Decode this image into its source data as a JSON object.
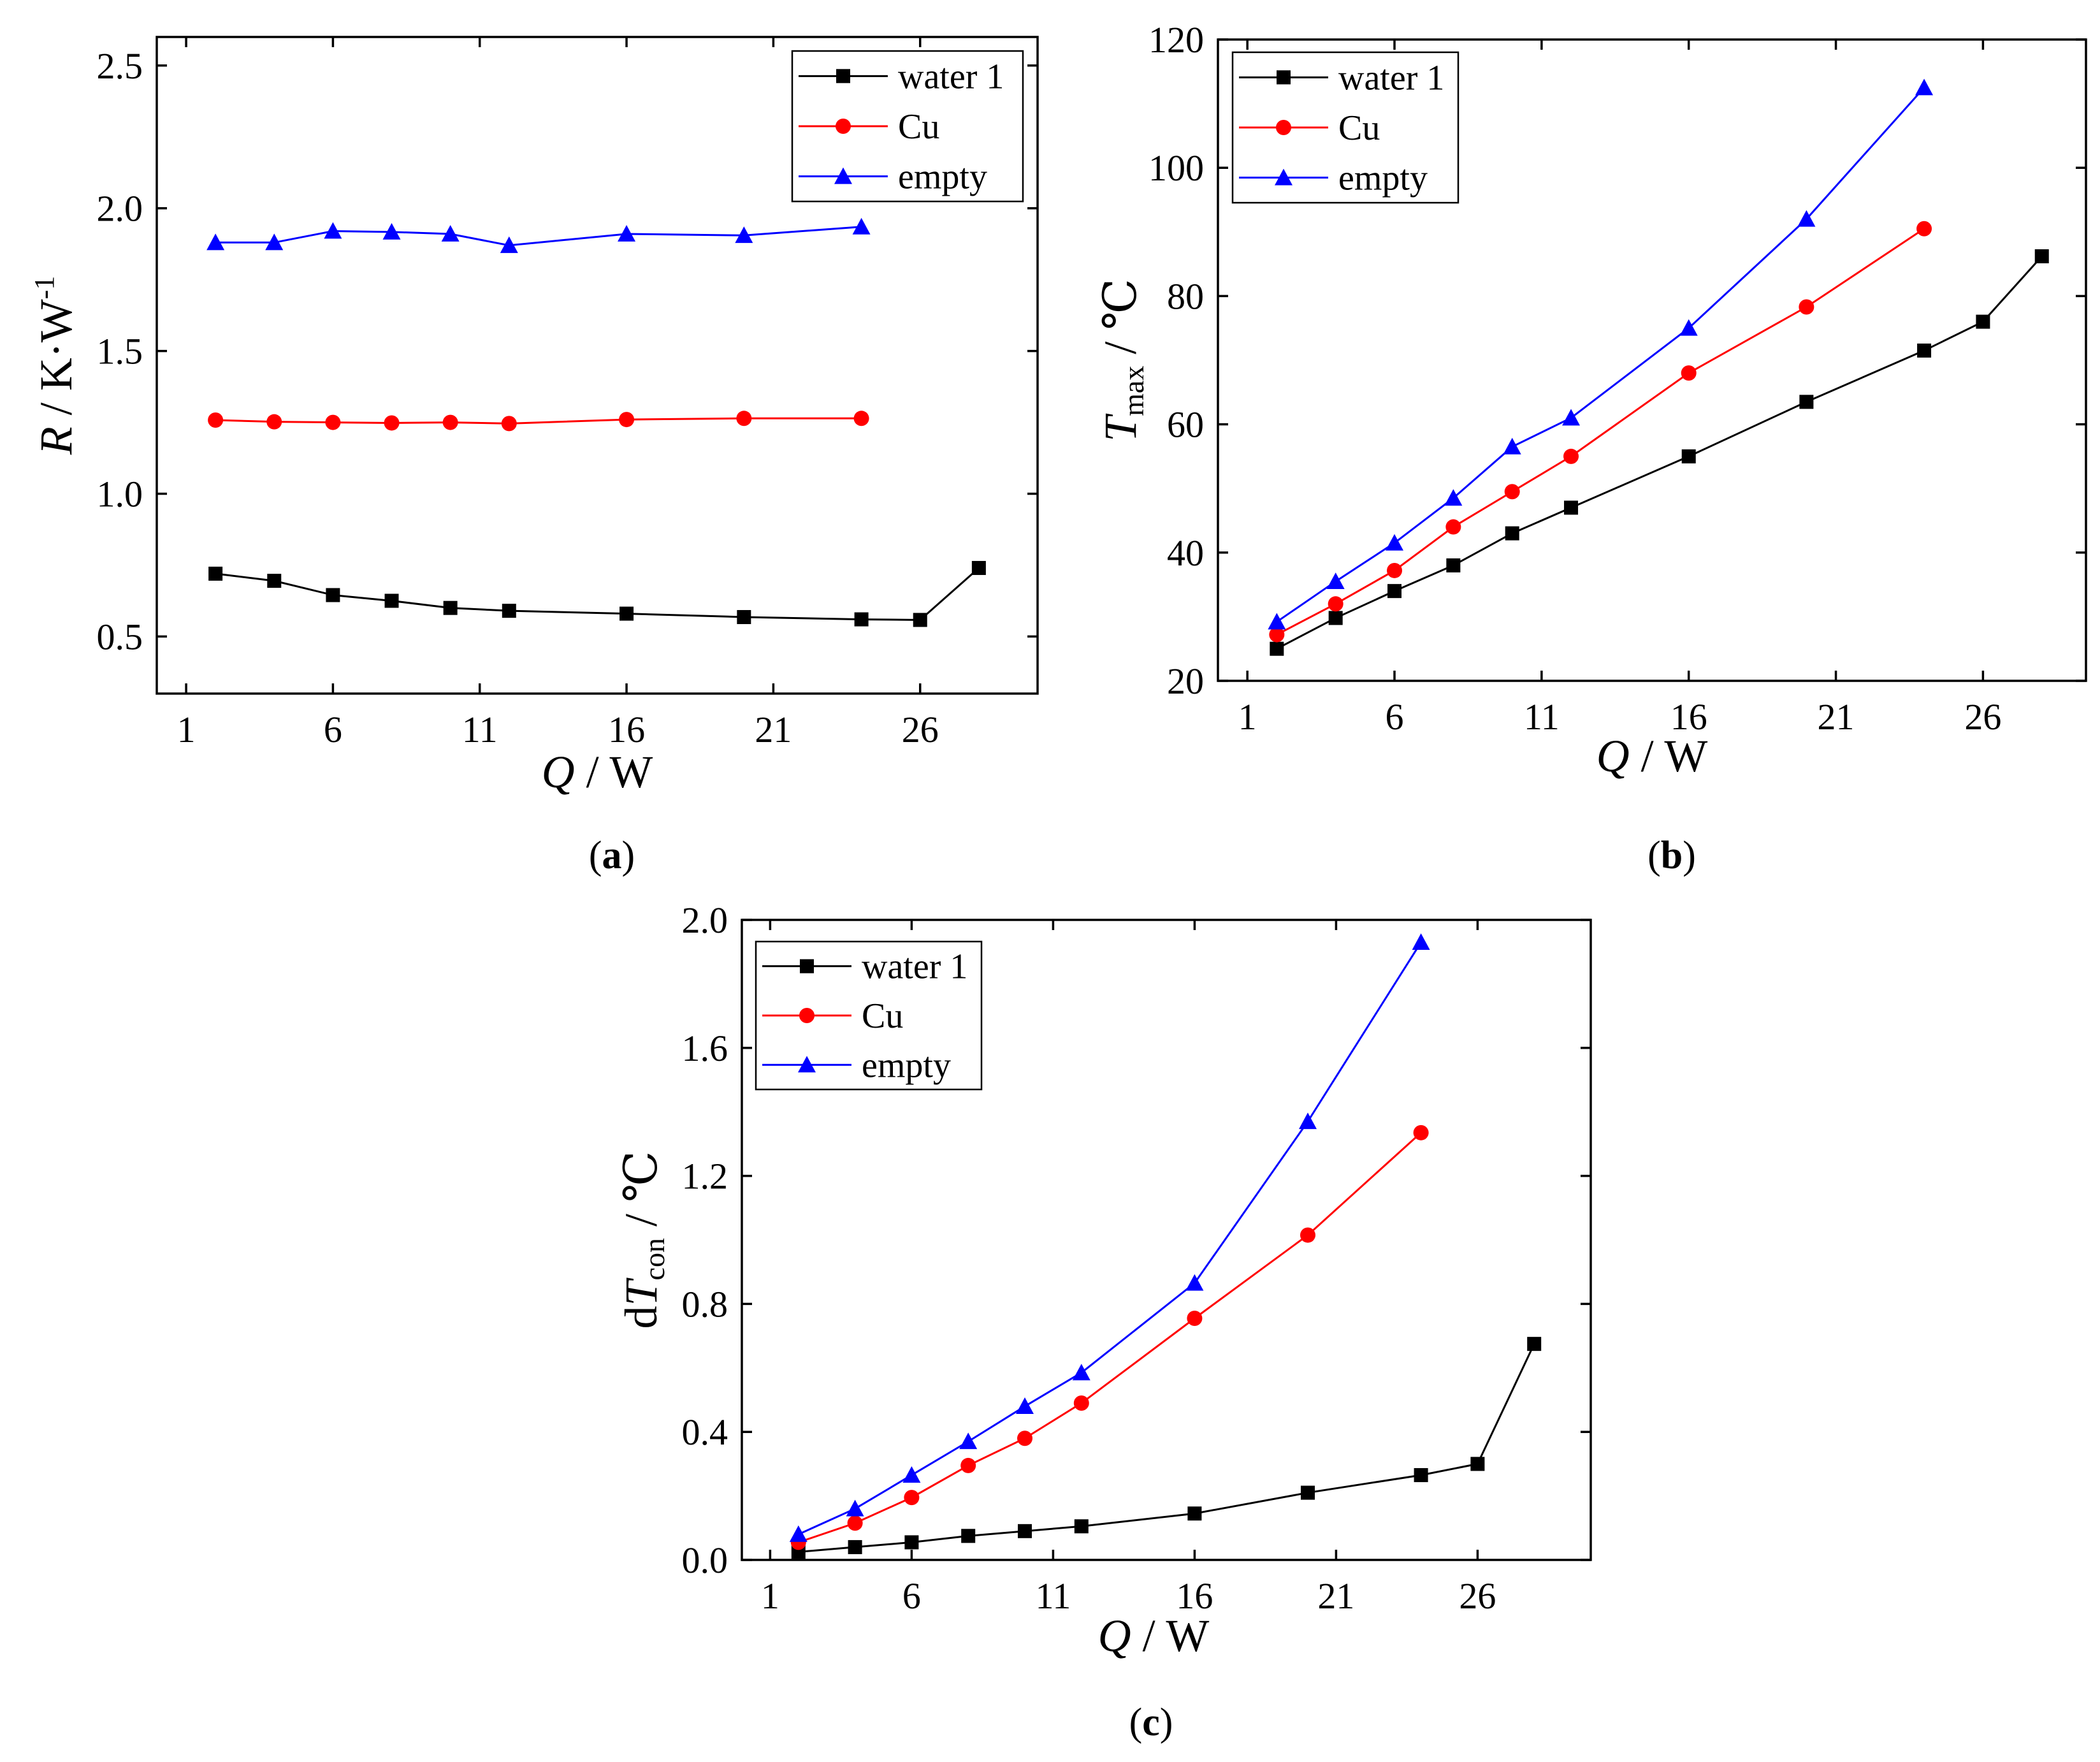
{
  "figure": {
    "panel_labels": [
      {
        "prefix": "(",
        "letter": "a",
        "suffix": ")"
      },
      {
        "prefix": "(",
        "letter": "b",
        "suffix": ")"
      },
      {
        "prefix": "(",
        "letter": "c",
        "suffix": ")"
      }
    ]
  },
  "colors": {
    "water": "#000000",
    "cu": "#ff0000",
    "empty": "#0000ff",
    "axis": "#000000"
  },
  "chart_data": [
    {
      "type": "line",
      "panel": "a",
      "xlabel": {
        "italic": "Q",
        "sep": " / ",
        "unit": "W"
      },
      "ylabel": {
        "italic": "R",
        "sep": " / ",
        "unit": "K·W",
        "sup": "-1"
      },
      "xlim": [
        0,
        30
      ],
      "ylim": [
        0.3,
        2.6
      ],
      "xticks": [
        1,
        6,
        11,
        16,
        21,
        26
      ],
      "xtick_labels": [
        "1",
        "6",
        "11",
        "16",
        "21",
        "26"
      ],
      "yticks": [
        0.5,
        1.0,
        1.5,
        2.0,
        2.5
      ],
      "ytick_labels": [
        "0.5",
        "1.0",
        "1.5",
        "2.0",
        "2.5"
      ],
      "legend_position": "top-right",
      "series": [
        {
          "name": "water 1",
          "color": "#000000",
          "marker": "square",
          "x": [
            2,
            4,
            6,
            8,
            10,
            12,
            16,
            20,
            24,
            26,
            28
          ],
          "y": [
            0.72,
            0.695,
            0.645,
            0.625,
            0.6,
            0.59,
            0.58,
            0.568,
            0.56,
            0.558,
            0.74
          ]
        },
        {
          "name": "Cu",
          "color": "#ff0000",
          "marker": "circle",
          "x": [
            2,
            4,
            6,
            8,
            10,
            12,
            16,
            20,
            24
          ],
          "y": [
            1.258,
            1.252,
            1.25,
            1.248,
            1.25,
            1.246,
            1.26,
            1.264,
            1.264
          ]
        },
        {
          "name": "empty",
          "color": "#0000ff",
          "marker": "triangle",
          "x": [
            2,
            4,
            6,
            8,
            10,
            12,
            16,
            20,
            24
          ],
          "y": [
            1.88,
            1.88,
            1.92,
            1.917,
            1.91,
            1.87,
            1.91,
            1.905,
            1.935
          ]
        }
      ]
    },
    {
      "type": "line",
      "panel": "b",
      "xlabel": {
        "italic": "Q",
        "sep": " / ",
        "unit": "W"
      },
      "ylabel": {
        "italic": "T",
        "sub": "max",
        "sep": " / ",
        "unit": "℃"
      },
      "xlim": [
        0,
        29.5
      ],
      "ylim": [
        20,
        120
      ],
      "xticks": [
        1,
        6,
        11,
        16,
        21,
        26
      ],
      "xtick_labels": [
        "1",
        "6",
        "11",
        "16",
        "21",
        "26"
      ],
      "yticks": [
        20,
        40,
        60,
        80,
        100,
        120
      ],
      "ytick_labels": [
        "20",
        "40",
        "60",
        "80",
        "100",
        "120"
      ],
      "legend_position": "top-left",
      "series": [
        {
          "name": "water 1",
          "color": "#000000",
          "marker": "square",
          "x": [
            2,
            4,
            6,
            8,
            10,
            12,
            16,
            20,
            24,
            26,
            28
          ],
          "y": [
            25,
            29.8,
            34,
            38,
            43,
            47,
            55,
            63.5,
            71.5,
            76,
            86.2
          ]
        },
        {
          "name": "Cu",
          "color": "#ff0000",
          "marker": "circle",
          "x": [
            2,
            4,
            6,
            8,
            10,
            12,
            16,
            20,
            24
          ],
          "y": [
            27.2,
            32,
            37.2,
            44,
            49.5,
            55,
            68,
            78.3,
            90.5
          ]
        },
        {
          "name": "empty",
          "color": "#0000ff",
          "marker": "triangle",
          "x": [
            2,
            4,
            6,
            8,
            10,
            12,
            16,
            20,
            24
          ],
          "y": [
            29.2,
            35.5,
            41.5,
            48.5,
            56.5,
            61,
            75,
            92,
            112.5
          ]
        }
      ]
    },
    {
      "type": "line",
      "panel": "c",
      "xlabel": {
        "italic": "Q",
        "sep": " / ",
        "unit": "W"
      },
      "ylabel": {
        "prefix": "d",
        "italic": "T",
        "sub": "con",
        "sep": " / ",
        "unit": "℃"
      },
      "xlim": [
        0,
        30
      ],
      "ylim": [
        0,
        2.0
      ],
      "xticks": [
        1,
        6,
        11,
        16,
        21,
        26
      ],
      "xtick_labels": [
        "1",
        "6",
        "11",
        "16",
        "21",
        "26"
      ],
      "yticks": [
        0,
        0.4,
        0.8,
        1.2,
        1.6,
        2.0
      ],
      "ytick_labels": [
        "0.0",
        "0.4",
        "0.8",
        "1.2",
        "1.6",
        "2.0"
      ],
      "legend_position": "top-left",
      "series": [
        {
          "name": "water 1",
          "color": "#000000",
          "marker": "square",
          "x": [
            2,
            4,
            6,
            8,
            10,
            12,
            16,
            20,
            24,
            26,
            28
          ],
          "y": [
            0.025,
            0.04,
            0.055,
            0.075,
            0.09,
            0.105,
            0.145,
            0.21,
            0.265,
            0.3,
            0.675
          ]
        },
        {
          "name": "Cu",
          "color": "#ff0000",
          "marker": "circle",
          "x": [
            2,
            4,
            6,
            8,
            10,
            12,
            16,
            20,
            24
          ],
          "y": [
            0.055,
            0.115,
            0.195,
            0.295,
            0.38,
            0.49,
            0.755,
            1.015,
            1.335
          ]
        },
        {
          "name": "empty",
          "color": "#0000ff",
          "marker": "triangle",
          "x": [
            2,
            4,
            6,
            8,
            10,
            12,
            16,
            20,
            24
          ],
          "y": [
            0.08,
            0.16,
            0.265,
            0.37,
            0.48,
            0.585,
            0.865,
            1.37,
            1.93
          ]
        }
      ]
    }
  ]
}
